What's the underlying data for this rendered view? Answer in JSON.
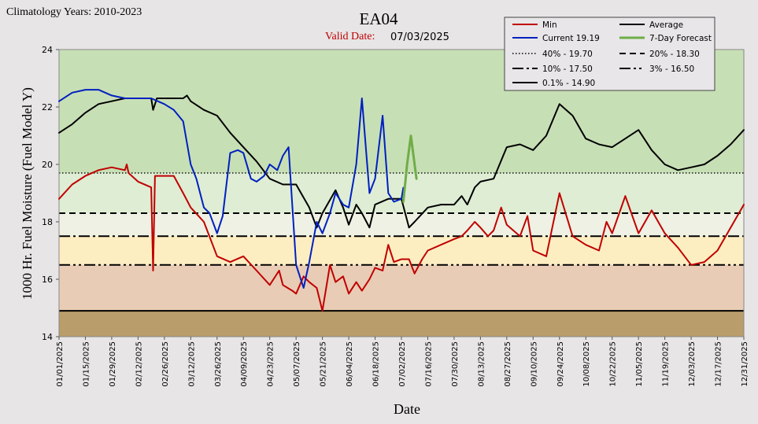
{
  "header": {
    "climatology": "Climatology Years: 2010-2023",
    "valid_date_label": "Valid Date:",
    "valid_date": "07/03/2025"
  },
  "chart_data": {
    "type": "line",
    "title": "EA04",
    "xlabel": "Date",
    "ylabel": "1000 Hr. Fuel Moisture (Fuel Model Y)",
    "ylim": [
      14,
      24
    ],
    "yticks": [
      14,
      16,
      18,
      20,
      22,
      24
    ],
    "xlim": [
      "01/01/2025",
      "12/31/2025"
    ],
    "xticks": [
      "01/01/2025",
      "01/15/2025",
      "01/29/2025",
      "02/12/2025",
      "02/26/2025",
      "03/12/2025",
      "03/26/2025",
      "04/09/2025",
      "04/23/2025",
      "05/07/2025",
      "05/21/2025",
      "06/04/2025",
      "06/18/2025",
      "07/02/2025",
      "07/16/2025",
      "07/30/2025",
      "08/13/2025",
      "08/27/2025",
      "09/10/2025",
      "09/24/2025",
      "10/08/2025",
      "10/22/2025",
      "11/05/2025",
      "11/19/2025",
      "12/03/2025",
      "12/17/2025",
      "12/31/2025"
    ],
    "grid": false,
    "legend_position": "top-right",
    "bands": [
      {
        "from": 19.7,
        "to": 24,
        "color": "#c7dfb5"
      },
      {
        "from": 18.3,
        "to": 19.7,
        "color": "#deedd4"
      },
      {
        "from": 17.5,
        "to": 18.3,
        "color": "#eef1e3"
      },
      {
        "from": 16.5,
        "to": 17.5,
        "color": "#fdeec2"
      },
      {
        "from": 14.9,
        "to": 16.5,
        "color": "#e8ccb5"
      },
      {
        "from": 14,
        "to": 14.9,
        "color": "#b99e6b"
      }
    ],
    "thresholds": [
      {
        "label": "40% -  19.70",
        "value": 19.7,
        "style": "dotted"
      },
      {
        "label": "20% -  18.30",
        "value": 18.3,
        "style": "dashed"
      },
      {
        "label": "10% -  17.50",
        "value": 17.5,
        "style": "dashdot"
      },
      {
        "label": "3% -  16.50",
        "value": 16.5,
        "style": "dashdotdot"
      },
      {
        "label": "0.1% -  14.90",
        "value": 14.9,
        "style": "solid"
      }
    ],
    "series": [
      {
        "name": "Average",
        "color": "#000000",
        "x": [
          "01/01/2025",
          "01/08/2025",
          "01/15/2025",
          "01/22/2025",
          "01/29/2025",
          "02/05/2025",
          "02/12/2025",
          "02/19/2025",
          "02/20/2025",
          "02/22/2025",
          "02/26/2025",
          "03/03/2025",
          "03/08/2025",
          "03/10/2025",
          "03/12/2025",
          "03/19/2025",
          "03/26/2025",
          "04/02/2025",
          "04/09/2025",
          "04/16/2025",
          "04/23/2025",
          "04/30/2025",
          "05/07/2025",
          "05/14/2025",
          "05/18/2025",
          "05/21/2025",
          "05/28/2025",
          "06/01/2025",
          "06/04/2025",
          "06/08/2025",
          "06/11/2025",
          "06/15/2025",
          "06/18/2025",
          "06/25/2025",
          "07/02/2025",
          "07/06/2025",
          "07/09/2025",
          "07/16/2025",
          "07/23/2025",
          "07/30/2025",
          "08/03/2025",
          "08/06/2025",
          "08/10/2025",
          "08/13/2025",
          "08/20/2025",
          "08/27/2025",
          "09/03/2025",
          "09/10/2025",
          "09/17/2025",
          "09/24/2025",
          "10/01/2025",
          "10/08/2025",
          "10/15/2025",
          "10/22/2025",
          "10/29/2025",
          "11/05/2025",
          "11/12/2025",
          "11/19/2025",
          "11/26/2025",
          "12/03/2025",
          "12/10/2025",
          "12/17/2025",
          "12/24/2025",
          "12/31/2025"
        ],
        "y": [
          21.1,
          21.4,
          21.8,
          22.1,
          22.2,
          22.3,
          22.3,
          22.3,
          21.9,
          22.3,
          22.3,
          22.3,
          22.3,
          22.4,
          22.2,
          21.9,
          21.7,
          21.1,
          20.6,
          20.1,
          19.5,
          19.3,
          19.3,
          18.5,
          17.8,
          18.3,
          19.1,
          18.5,
          17.9,
          18.6,
          18.3,
          17.8,
          18.6,
          18.8,
          18.8,
          17.8,
          18.0,
          18.5,
          18.6,
          18.6,
          18.9,
          18.6,
          19.2,
          19.4,
          19.5,
          20.6,
          20.7,
          20.5,
          21.0,
          22.1,
          21.7,
          20.9,
          20.7,
          20.6,
          20.9,
          21.2,
          20.5,
          20.0,
          19.8,
          19.9,
          20.0,
          20.3,
          20.7,
          21.2
        ]
      },
      {
        "name": "Min",
        "color": "#c00000",
        "x": [
          "01/01/2025",
          "01/08/2025",
          "01/15/2025",
          "01/22/2025",
          "01/29/2025",
          "02/05/2025",
          "02/06/2025",
          "02/07/2025",
          "02/12/2025",
          "02/19/2025",
          "02/20/2025",
          "02/21/2025",
          "02/26/2025",
          "03/03/2025",
          "03/08/2025",
          "03/12/2025",
          "03/19/2025",
          "03/26/2025",
          "04/02/2025",
          "04/09/2025",
          "04/16/2025",
          "04/23/2025",
          "04/28/2025",
          "04/30/2025",
          "05/05/2025",
          "05/07/2025",
          "05/11/2025",
          "05/14/2025",
          "05/18/2025",
          "05/21/2025",
          "05/25/2025",
          "05/28/2025",
          "06/01/2025",
          "06/04/2025",
          "06/08/2025",
          "06/11/2025",
          "06/15/2025",
          "06/18/2025",
          "06/22/2025",
          "06/25/2025",
          "06/28/2025",
          "07/02/2025",
          "07/06/2025",
          "07/09/2025",
          "07/13/2025",
          "07/16/2025",
          "07/23/2025",
          "07/30/2025",
          "08/03/2025",
          "08/06/2025",
          "08/10/2025",
          "08/13/2025",
          "08/17/2025",
          "08/20/2025",
          "08/24/2025",
          "08/27/2025",
          "09/03/2025",
          "09/07/2025",
          "09/10/2025",
          "09/17/2025",
          "09/24/2025",
          "10/01/2025",
          "10/08/2025",
          "10/15/2025",
          "10/19/2025",
          "10/22/2025",
          "10/29/2025",
          "11/05/2025",
          "11/12/2025",
          "11/19/2025",
          "11/26/2025",
          "12/03/2025",
          "12/10/2025",
          "12/17/2025",
          "12/24/2025",
          "12/31/2025"
        ],
        "y": [
          18.8,
          19.3,
          19.6,
          19.8,
          19.9,
          19.8,
          20.0,
          19.7,
          19.4,
          19.2,
          16.3,
          19.6,
          19.6,
          19.6,
          19.0,
          18.5,
          18.0,
          16.8,
          16.6,
          16.8,
          16.3,
          15.8,
          16.3,
          15.8,
          15.6,
          15.5,
          16.1,
          15.9,
          15.7,
          14.9,
          16.5,
          15.9,
          16.1,
          15.5,
          15.9,
          15.6,
          16.0,
          16.4,
          16.3,
          17.2,
          16.6,
          16.7,
          16.7,
          16.2,
          16.7,
          17.0,
          17.2,
          17.4,
          17.5,
          17.7,
          18.0,
          17.8,
          17.5,
          17.7,
          18.5,
          17.9,
          17.5,
          18.2,
          17.0,
          16.8,
          19.0,
          17.5,
          17.2,
          17.0,
          18.0,
          17.6,
          18.9,
          17.6,
          18.4,
          17.6,
          17.1,
          16.5,
          16.6,
          17.0,
          17.8,
          18.6
        ]
      },
      {
        "name": "Current 19.19",
        "color": "#0020c0",
        "x": [
          "01/01/2025",
          "01/08/2025",
          "01/15/2025",
          "01/22/2025",
          "01/29/2025",
          "02/05/2025",
          "02/12/2025",
          "02/19/2025",
          "02/26/2025",
          "03/03/2025",
          "03/08/2025",
          "03/12/2025",
          "03/15/2025",
          "03/19/2025",
          "03/22/2025",
          "03/26/2025",
          "03/29/2025",
          "04/02/2025",
          "04/06/2025",
          "04/09/2025",
          "04/13/2025",
          "04/16/2025",
          "04/20/2025",
          "04/23/2025",
          "04/27/2025",
          "04/30/2025",
          "05/03/2025",
          "05/07/2025",
          "05/11/2025",
          "05/14/2025",
          "05/18/2025",
          "05/21/2025",
          "05/25/2025",
          "05/28/2025",
          "06/01/2025",
          "06/04/2025",
          "06/08/2025",
          "06/11/2025",
          "06/15/2025",
          "06/18/2025",
          "06/22/2025",
          "06/25/2025",
          "06/28/2025",
          "07/02/2025",
          "07/03/2025"
        ],
        "y": [
          22.2,
          22.5,
          22.6,
          22.6,
          22.4,
          22.3,
          22.3,
          22.3,
          22.1,
          21.9,
          21.5,
          20.0,
          19.5,
          18.5,
          18.3,
          17.6,
          18.2,
          20.4,
          20.5,
          20.4,
          19.5,
          19.4,
          19.6,
          20.0,
          19.8,
          20.3,
          20.6,
          16.5,
          15.7,
          16.6,
          18.0,
          17.6,
          18.3,
          19.0,
          18.6,
          18.5,
          20.0,
          22.3,
          19.0,
          19.5,
          21.7,
          19.0,
          18.7,
          18.8,
          19.19
        ]
      },
      {
        "name": "7-Day Forecast",
        "color": "#70ad47",
        "x": [
          "07/03/2025",
          "07/05/2025",
          "07/07/2025",
          "07/10/2025"
        ],
        "y": [
          18.7,
          20.0,
          21.0,
          19.5
        ]
      }
    ]
  },
  "legend": [
    {
      "label": "Min",
      "color": "#c00000",
      "style": "solid",
      "width": 2
    },
    {
      "label": "Average",
      "color": "#000000",
      "style": "solid",
      "width": 2
    },
    {
      "label": "Current 19.19",
      "color": "#0020c0",
      "style": "solid",
      "width": 2
    },
    {
      "label": "7-Day Forecast",
      "color": "#70ad47",
      "style": "solid",
      "width": 3
    },
    {
      "label": "40% -  19.70",
      "color": "#000000",
      "style": "dotted",
      "width": 1.5
    },
    {
      "label": "20% -  18.30",
      "color": "#000000",
      "style": "dashed",
      "width": 2
    },
    {
      "label": "10% -  17.50",
      "color": "#000000",
      "style": "dashdot",
      "width": 2
    },
    {
      "label": "3% -  16.50",
      "color": "#000000",
      "style": "dashdotdot",
      "width": 2
    },
    {
      "label": "0.1% -  14.90",
      "color": "#000000",
      "style": "solid",
      "width": 2
    }
  ]
}
